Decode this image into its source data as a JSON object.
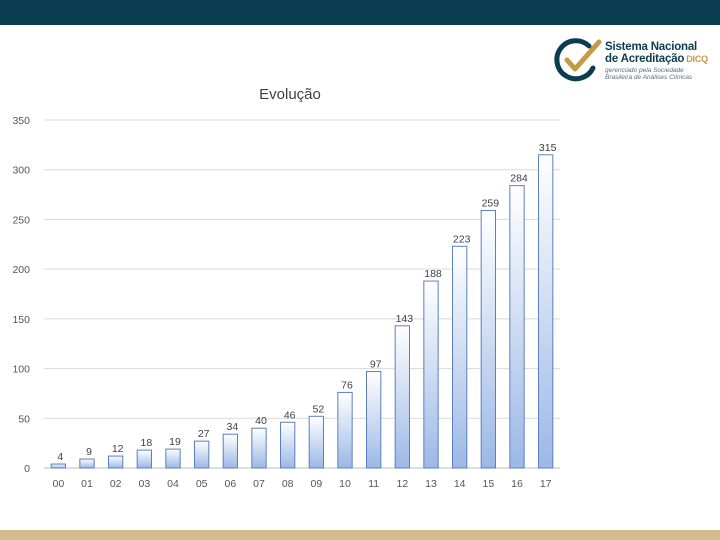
{
  "logo": {
    "line1": "Sistema Nacional",
    "line2": "de Acreditação",
    "badge": "DICQ",
    "sub1": "gerenciado pela Sociedade",
    "sub2": "Brasileira de Análises Clínicas"
  },
  "colors": {
    "top_bar": "#0a3d4f",
    "bottom_bar": "#d3bd8e",
    "bar_fill_top": "#ffffff",
    "bar_fill_bottom": "#9cb8e6",
    "bar_stroke": "#5b7fc0",
    "grid": "#d9d9d9"
  },
  "chart_data": {
    "type": "bar",
    "title": "Evolução",
    "categories": [
      "00",
      "01",
      "02",
      "03",
      "04",
      "05",
      "06",
      "07",
      "08",
      "09",
      "10",
      "11",
      "12",
      "13",
      "14",
      "15",
      "16",
      "17"
    ],
    "values": [
      4,
      9,
      12,
      18,
      19,
      27,
      34,
      40,
      46,
      52,
      76,
      97,
      143,
      188,
      223,
      259,
      284,
      315
    ],
    "ylim": [
      0,
      350
    ],
    "yticks": [
      0,
      50,
      100,
      150,
      200,
      250,
      300,
      350
    ],
    "grid": true,
    "legend": "none",
    "data_labels": true
  }
}
